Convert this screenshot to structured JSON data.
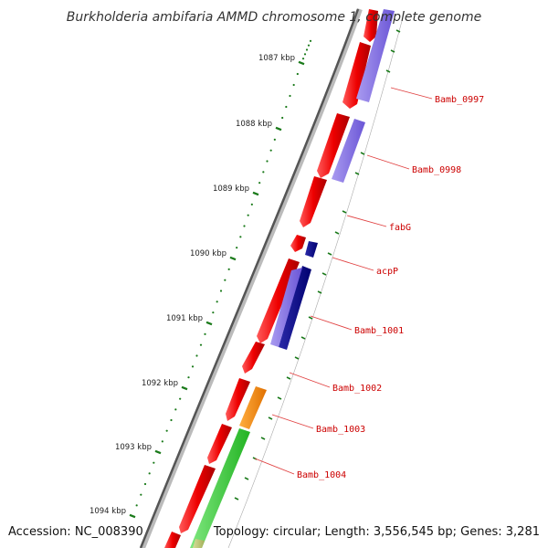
{
  "title": "Burkholderia ambifaria AMMD chromosome 1, complete genome",
  "footer": {
    "accession": "Accession: NC_008390",
    "summary": "Topology: circular; Length: 3,556,545 bp; Genes: 3,281"
  },
  "colors": {
    "ruler": "#1a7a1a",
    "label": "#cc0000",
    "leader": "#e04040",
    "backbone_dark": "#555555",
    "backbone_light": "#bbbbbb"
  },
  "ticks": [
    {
      "label": "1087 kbp"
    },
    {
      "label": "1088 kbp"
    },
    {
      "label": "1089 kbp"
    },
    {
      "label": "1090 kbp"
    },
    {
      "label": "1091 kbp"
    },
    {
      "label": "1092 kbp"
    },
    {
      "label": "1093 kbp"
    },
    {
      "label": "1094 kbp"
    }
  ],
  "genes": [
    {
      "label": "Bamb_0997"
    },
    {
      "label": "Bamb_0998"
    },
    {
      "label": "fabG"
    },
    {
      "label": "acpP"
    },
    {
      "label": "Bamb_1001"
    },
    {
      "label": "Bamb_1002"
    },
    {
      "label": "Bamb_1003"
    },
    {
      "label": "Bamb_1004"
    }
  ]
}
